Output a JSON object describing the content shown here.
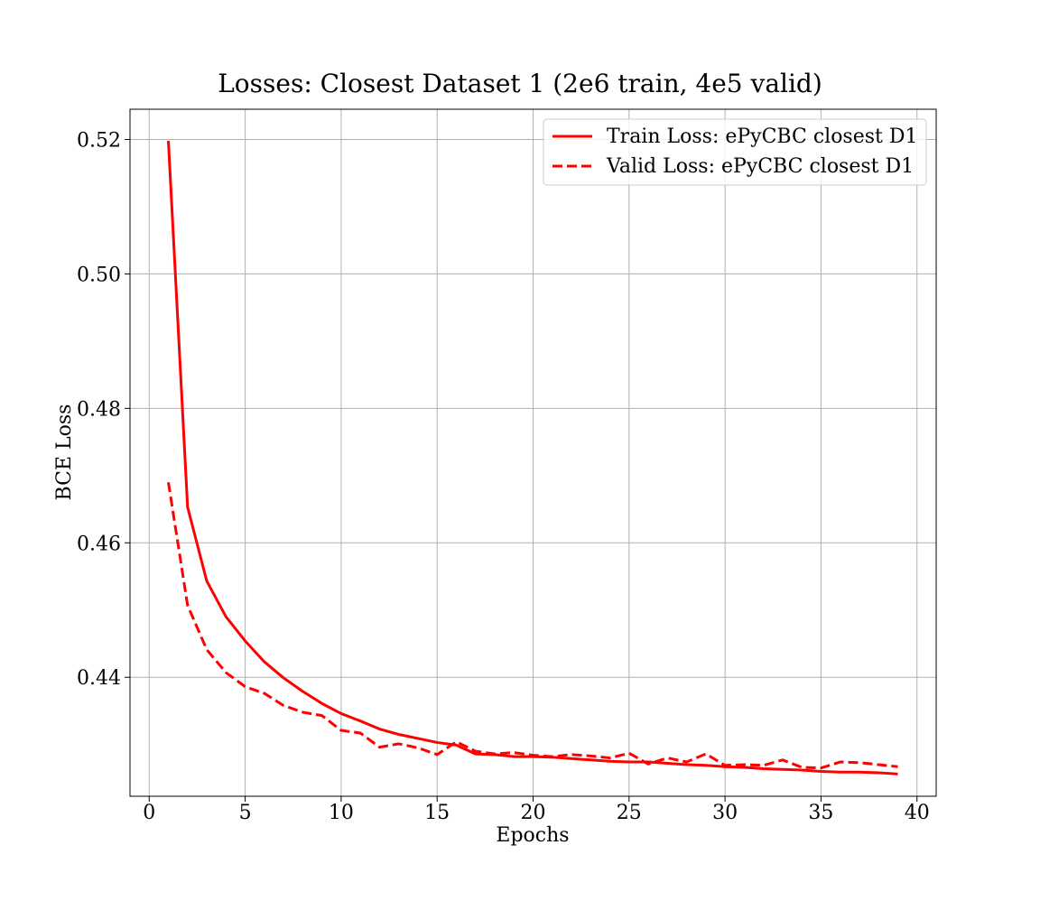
{
  "chart_data": {
    "type": "line",
    "title": "Losses: Closest Dataset 1 (2e6 train, 4e5 valid)",
    "xlabel": "Epochs",
    "ylabel": "BCE Loss",
    "xlim": [
      -1,
      41
    ],
    "ylim": [
      0.4223,
      0.5245
    ],
    "xticks": [
      0,
      5,
      10,
      15,
      20,
      25,
      30,
      35,
      40
    ],
    "xtick_labels": [
      "0",
      "5",
      "10",
      "15",
      "20",
      "25",
      "30",
      "35",
      "40"
    ],
    "yticks": [
      0.44,
      0.46,
      0.48,
      0.5,
      0.52
    ],
    "ytick_labels": [
      "0.44",
      "0.46",
      "0.48",
      "0.50",
      "0.52"
    ],
    "grid": true,
    "legend_position": "upper right",
    "x": [
      1,
      2,
      3,
      4,
      5,
      6,
      7,
      8,
      9,
      10,
      11,
      12,
      13,
      14,
      15,
      16,
      17,
      18,
      19,
      20,
      21,
      22,
      23,
      24,
      25,
      26,
      27,
      28,
      29,
      30,
      31,
      32,
      33,
      34,
      35,
      36,
      37,
      38,
      39
    ],
    "series": [
      {
        "name": "Train Loss: ePyCBC closest D1",
        "color": "#ff0000",
        "style": "solid",
        "values": [
          0.5198,
          0.4653,
          0.4543,
          0.449,
          0.4454,
          0.4423,
          0.4399,
          0.4379,
          0.4361,
          0.4346,
          0.4335,
          0.4323,
          0.4315,
          0.4309,
          0.4303,
          0.4299,
          0.4286,
          0.4285,
          0.4282,
          0.4282,
          0.4281,
          0.4279,
          0.4277,
          0.4275,
          0.4274,
          0.4274,
          0.4272,
          0.427,
          0.4269,
          0.4267,
          0.4266,
          0.4264,
          0.4263,
          0.4262,
          0.426,
          0.4259,
          0.4259,
          0.4258,
          0.4256
        ]
      },
      {
        "name": "Valid Loss: ePyCBC closest D1",
        "color": "#ff0000",
        "style": "dashed",
        "values": [
          0.469,
          0.4507,
          0.4441,
          0.4407,
          0.4386,
          0.4376,
          0.4358,
          0.4348,
          0.4343,
          0.4321,
          0.4317,
          0.4296,
          0.4301,
          0.4295,
          0.4285,
          0.4304,
          0.429,
          0.4286,
          0.4288,
          0.4284,
          0.4282,
          0.4285,
          0.4283,
          0.428,
          0.4287,
          0.4271,
          0.428,
          0.4274,
          0.4286,
          0.4269,
          0.427,
          0.4269,
          0.4277,
          0.4266,
          0.4265,
          0.4274,
          0.4273,
          0.427,
          0.4267
        ]
      }
    ]
  }
}
